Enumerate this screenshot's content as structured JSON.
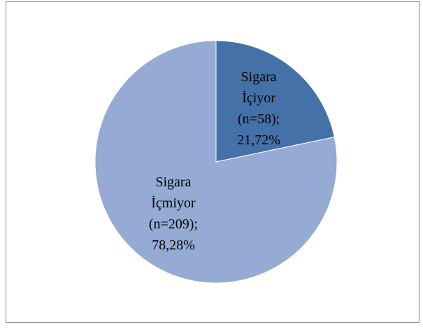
{
  "chart_data": {
    "type": "pie",
    "categories": [
      "Sigara İçiyor",
      "Sigara İçmiyor"
    ],
    "counts": [
      58,
      209
    ],
    "count_labels": [
      "(n=58);",
      "(n=209);"
    ],
    "values": [
      21.72,
      78.28
    ],
    "value_labels": [
      "21,72%",
      "78,28%"
    ],
    "colors": [
      "#4571a9",
      "#95abd4"
    ]
  }
}
